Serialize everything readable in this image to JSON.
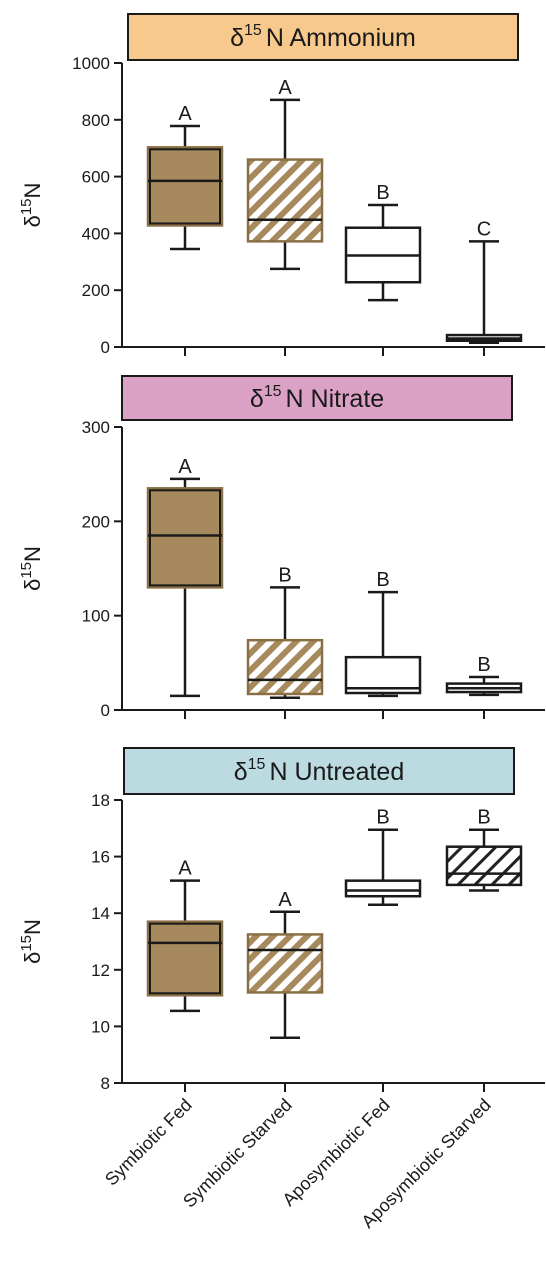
{
  "colors": {
    "fed_fill": "#a68a5e",
    "hatch_brown": "#a68a5e",
    "hatch_black": "#222222",
    "stroke": "#1a1a1a"
  },
  "chart_data": [
    {
      "type": "box",
      "title_symbol": "δ",
      "title_superscript": "15",
      "title_text": "N Ammonium",
      "title_bg": "#f8c98d",
      "ylabel_symbol": "δ",
      "ylabel_superscript": "15",
      "ylabel_text": "N",
      "ylim": [
        0,
        1000
      ],
      "yticks": [
        0,
        200,
        400,
        600,
        800,
        1000
      ],
      "categories": [
        "Symbiotic Fed",
        "Symbiotic Starved",
        "Aposymbiotic Fed",
        "Aposymbiotic Starved"
      ],
      "boxes": [
        {
          "min": 345,
          "q1": 428,
          "median": 585,
          "q3": 703,
          "max": 778,
          "letter": "A",
          "style": "solid-brown"
        },
        {
          "min": 275,
          "q1": 372,
          "median": 448,
          "q3": 660,
          "max": 870,
          "letter": "A",
          "style": "hatch-brown"
        },
        {
          "min": 165,
          "q1": 228,
          "median": 322,
          "q3": 420,
          "max": 500,
          "letter": "B",
          "style": "white"
        },
        {
          "min": 15,
          "q1": 22,
          "median": 30,
          "q3": 42,
          "max": 372,
          "letter": "C",
          "style": "white"
        }
      ]
    },
    {
      "type": "box",
      "title_symbol": "δ",
      "title_superscript": "15",
      "title_text": "N Nitrate",
      "title_bg": "#dca2c6",
      "ylabel_symbol": "δ",
      "ylabel_superscript": "15",
      "ylabel_text": "N",
      "ylim": [
        0,
        300
      ],
      "yticks": [
        0,
        100,
        200,
        300
      ],
      "categories": [
        "Symbiotic Fed",
        "Symbiotic Starved",
        "Aposymbiotic Fed",
        "Aposymbiotic Starved"
      ],
      "boxes": [
        {
          "min": 15,
          "q1": 130,
          "median": 185,
          "q3": 235,
          "max": 245,
          "letter": "A",
          "style": "solid-brown"
        },
        {
          "min": 13,
          "q1": 17,
          "median": 32,
          "q3": 74,
          "max": 130,
          "letter": "B",
          "style": "hatch-brown"
        },
        {
          "min": 15,
          "q1": 18,
          "median": 23,
          "q3": 56,
          "max": 125,
          "letter": "B",
          "style": "white"
        },
        {
          "min": 16,
          "q1": 19,
          "median": 23,
          "q3": 28,
          "max": 35,
          "letter": "B",
          "style": "white"
        }
      ]
    },
    {
      "type": "box",
      "title_symbol": "δ",
      "title_superscript": "15",
      "title_text": "N Untreated",
      "title_bg": "#bcdbe0",
      "ylabel_symbol": "δ",
      "ylabel_superscript": "15",
      "ylabel_text": "N",
      "ylim": [
        8,
        18
      ],
      "yticks": [
        8,
        10,
        12,
        14,
        16,
        18
      ],
      "categories": [
        "Symbiotic Fed",
        "Symbiotic Starved",
        "Aposymbiotic Fed",
        "Aposymbiotic Starved"
      ],
      "boxes": [
        {
          "min": 10.55,
          "q1": 11.1,
          "median": 12.95,
          "q3": 13.7,
          "max": 15.15,
          "letter": "A",
          "style": "solid-brown"
        },
        {
          "min": 9.6,
          "q1": 11.2,
          "median": 12.7,
          "q3": 13.25,
          "max": 14.05,
          "letter": "A",
          "style": "hatch-brown"
        },
        {
          "min": 14.3,
          "q1": 14.6,
          "median": 14.8,
          "q3": 15.15,
          "max": 16.95,
          "letter": "B",
          "style": "white"
        },
        {
          "min": 14.8,
          "q1": 15.0,
          "median": 15.4,
          "q3": 16.35,
          "max": 16.95,
          "letter": "B",
          "style": "hatch-black"
        }
      ]
    }
  ],
  "x_axis": {
    "labels": [
      "Symbiotic Fed",
      "Symbiotic Starved",
      "Aposymbiotic Fed",
      "Aposymbiotic Starved"
    ]
  }
}
